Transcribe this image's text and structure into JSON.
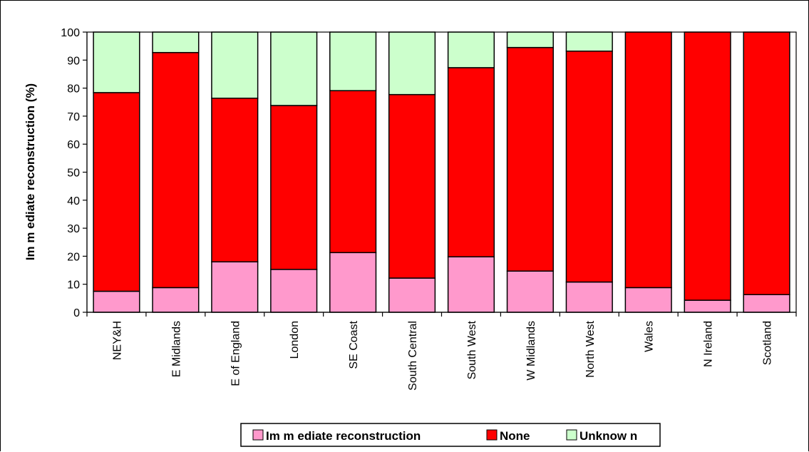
{
  "chart_data": {
    "type": "bar",
    "stacked": true,
    "categories": [
      "NEY&H",
      "E Midlands",
      "E of England",
      "London",
      "SE Coast",
      "South Central",
      "South West",
      "W Midlands",
      "North West",
      "Wales",
      "N Ireland",
      "Scotland"
    ],
    "series": [
      {
        "name": "Immediate reconstruction",
        "color": "#FF99CC",
        "values": [
          7.5,
          8.8,
          18.0,
          15.3,
          21.3,
          12.2,
          19.8,
          14.7,
          10.8,
          8.8,
          4.3,
          6.3
        ]
      },
      {
        "name": "None",
        "color": "#FF0000",
        "values": [
          70.9,
          83.9,
          58.4,
          58.5,
          57.8,
          65.5,
          67.5,
          79.8,
          82.4,
          91.2,
          95.7,
          93.7
        ]
      },
      {
        "name": "Unknown",
        "color": "#CCFFCC",
        "values": [
          21.6,
          7.3,
          23.6,
          26.2,
          20.9,
          22.3,
          12.7,
          5.5,
          6.8,
          0,
          0,
          0
        ]
      }
    ],
    "ylabel": "Im m ediate reconstruction (%)",
    "xlabel": "",
    "ylim": [
      0,
      100
    ],
    "yticks": [
      0,
      10,
      20,
      30,
      40,
      50,
      60,
      70,
      80,
      90,
      100
    ],
    "grid": false,
    "legend_position": "bottom"
  },
  "legend": {
    "labels": [
      "Im m ediate reconstruction",
      "None",
      "Unknow n"
    ]
  }
}
